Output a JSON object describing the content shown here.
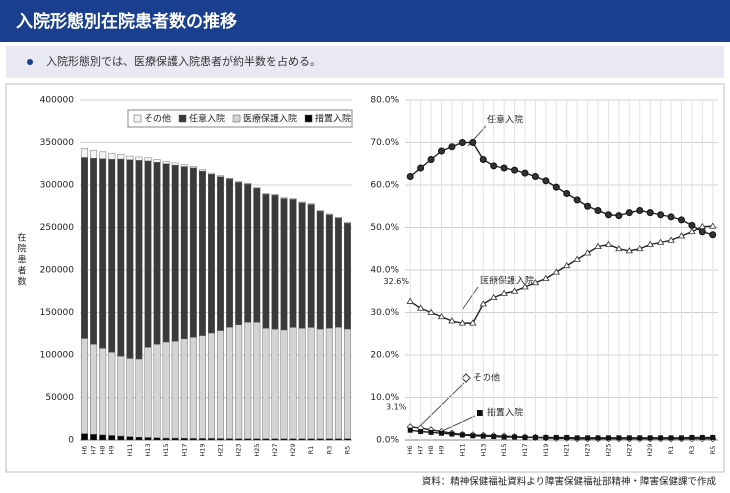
{
  "header": {
    "title": "入院形態別在院患者数の推移",
    "bullet": "入院形態別では、医療保護入院患者が約半数を占める。"
  },
  "source": "資料：精神保健福祉資料より障害保健福祉部精神・障害保健課で作成",
  "chart_data": [
    {
      "type": "bar",
      "stacked": true,
      "ylabel": "在院患者数",
      "categories": [
        "H6",
        "H7",
        "H8",
        "H9",
        null,
        "H11",
        null,
        "H13",
        null,
        "H15",
        null,
        "H17",
        null,
        "H19",
        null,
        "H21",
        null,
        "H23",
        null,
        "H25",
        null,
        "H27",
        null,
        "H29",
        null,
        "R1",
        null,
        "R3",
        null,
        "R5"
      ],
      "series": [
        {
          "name": "措置入院",
          "color": "#000000",
          "values": [
            7500,
            6800,
            6000,
            5400,
            4700,
            4000,
            3300,
            3000,
            2600,
            2300,
            2300,
            2000,
            1900,
            1900,
            1900,
            1800,
            1700,
            1600,
            1600,
            1500,
            1500,
            1500,
            1500,
            1500,
            1500,
            1500,
            1500,
            1600,
            1600,
            1600
          ]
        },
        {
          "name": "医療保護入院",
          "color": "#d4d4d4",
          "values": [
            112000,
            106000,
            102000,
            98000,
            94000,
            92000,
            92000,
            106000,
            110000,
            113000,
            114000,
            117000,
            119000,
            121000,
            124000,
            127000,
            131000,
            134000,
            137000,
            137000,
            130000,
            129000,
            128000,
            131000,
            130000,
            131000,
            129000,
            130000,
            131000,
            129000
          ]
        },
        {
          "name": "任意入院",
          "color": "#3a3a3a",
          "values": [
            212900,
            218700,
            222900,
            226900,
            231900,
            233700,
            233700,
            219300,
            214100,
            209700,
            207100,
            202700,
            199200,
            193500,
            186800,
            181000,
            174400,
            167500,
            162500,
            157600,
            157600,
            157600,
            154600,
            150600,
            147600,
            144600,
            138600,
            133500,
            128500,
            124500
          ]
        },
        {
          "name": "その他",
          "color": "#f4f4f4",
          "values": [
            10600,
            9500,
            8100,
            6700,
            5400,
            4300,
            4000,
            3700,
            3300,
            3000,
            2600,
            2300,
            1900,
            1600,
            1300,
            1200,
            900,
            900,
            900,
            900,
            900,
            900,
            900,
            900,
            900,
            900,
            900,
            900,
            900,
            900
          ]
        }
      ],
      "ylim": [
        0,
        400000
      ],
      "yticks": [
        0,
        50000,
        100000,
        150000,
        200000,
        250000,
        300000,
        350000,
        400000
      ],
      "grid": true,
      "legend": "top-right"
    },
    {
      "type": "line",
      "categories": [
        "H6",
        "H7",
        "H8",
        "H9",
        null,
        "H11",
        null,
        "H13",
        null,
        "H15",
        null,
        "H17",
        null,
        "H19",
        null,
        "H21",
        null,
        "H23",
        null,
        "H25",
        null,
        "H27",
        null,
        "H29",
        null,
        "R1",
        null,
        "R3",
        null,
        "R5"
      ],
      "series": [
        {
          "name": "任意入院",
          "color": "#222222",
          "values": [
            62,
            64,
            66,
            68,
            69,
            70,
            70,
            66,
            64.5,
            64,
            63.5,
            62.8,
            62,
            61,
            59.5,
            58,
            56.5,
            55,
            54,
            53,
            52.8,
            53.5,
            54,
            53.5,
            53,
            52.5,
            51.8,
            50.5,
            49,
            48.3
          ]
        },
        {
          "name": "医療保護入院",
          "color": "#222222",
          "values": [
            32.6,
            31,
            30,
            29,
            28,
            27.5,
            27.5,
            32,
            33.5,
            34.5,
            35,
            36,
            37,
            38,
            39.5,
            41,
            42.5,
            44,
            45.5,
            46,
            45,
            44.5,
            45,
            46,
            46.5,
            47,
            48,
            49,
            50.2,
            50.3
          ],
          "value_labels": [
            "32.6%",
            null,
            null,
            null,
            null,
            null,
            null,
            null,
            null,
            null,
            null,
            null,
            null,
            null,
            null,
            null,
            null,
            null,
            null,
            null,
            null,
            null,
            null,
            null,
            null,
            null,
            null,
            null,
            null,
            null
          ]
        },
        {
          "name": "その他",
          "color": "#222222",
          "values": [
            3.1,
            2.8,
            2.4,
            2,
            1.6,
            1.3,
            1.2,
            1.1,
            1,
            0.9,
            0.8,
            0.7,
            0.6,
            0.5,
            0.4,
            0.4,
            0.3,
            0.3,
            0.3,
            0.3,
            0.3,
            0.3,
            0.3,
            0.3,
            0.3,
            0.3,
            0.3,
            0.3,
            0.3,
            0.3
          ],
          "value_labels": [
            "3.1%",
            null,
            null,
            null,
            null,
            null,
            null,
            null,
            null,
            null,
            null,
            null,
            null,
            null,
            null,
            null,
            null,
            null,
            null,
            null,
            null,
            null,
            null,
            null,
            null,
            null,
            null,
            null,
            null,
            null
          ]
        },
        {
          "name": "措置入院",
          "color": "#222222",
          "values": [
            2.3,
            2,
            1.8,
            1.6,
            1.4,
            1.2,
            1,
            0.9,
            0.8,
            0.7,
            0.7,
            0.6,
            0.6,
            0.6,
            0.6,
            0.6,
            0.5,
            0.5,
            0.5,
            0.5,
            0.5,
            0.5,
            0.5,
            0.5,
            0.5,
            0.5,
            0.5,
            0.6,
            0.6,
            0.6
          ]
        }
      ],
      "ylim": [
        0,
        80
      ],
      "yticks": [
        {
          "value": 0,
          "label": "0.0%"
        },
        {
          "value": 10,
          "label": "10.0%"
        },
        {
          "value": 20,
          "label": "20.0%"
        },
        {
          "value": 30,
          "label": "30.0%"
        },
        {
          "value": 40,
          "label": "40.0%"
        },
        {
          "value": 50,
          "label": "50.0%"
        },
        {
          "value": 60,
          "label": "60.0%"
        },
        {
          "value": 70,
          "label": "70.0%"
        },
        {
          "value": 80,
          "label": "80.0%"
        }
      ],
      "grid": true
    }
  ]
}
